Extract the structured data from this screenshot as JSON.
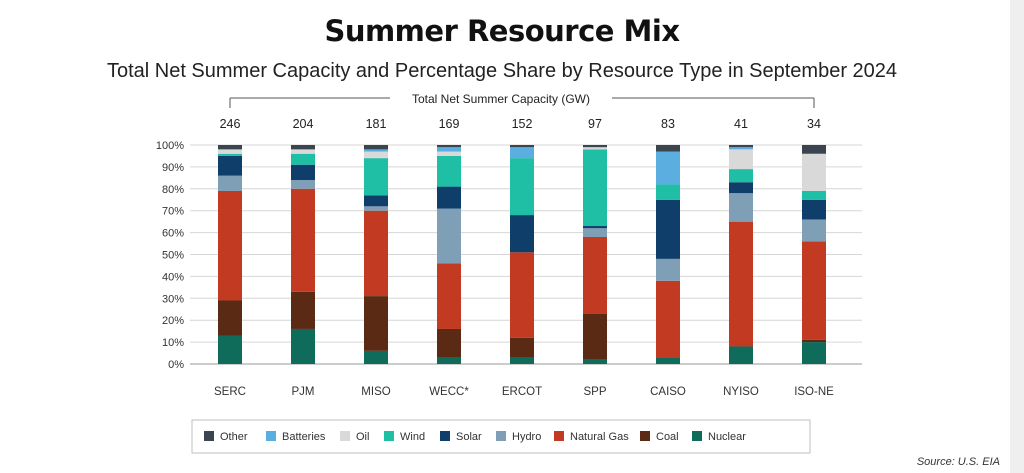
{
  "title": "Summer Resource Mix",
  "subtitle": "Total Net Summer Capacity and Percentage Share by Resource Type in September 2024",
  "source": "Source: U.S. EIA",
  "colors": {
    "Nuclear": "#0f6b5a",
    "Coal": "#5a2a14",
    "Natural Gas": "#c23a22",
    "Hydro": "#7f9fb6",
    "Solar": "#0f3e6a",
    "Wind": "#1fbfa6",
    "Oil": "#d9d9d9",
    "Batteries": "#5aaee0",
    "Other": "#3b4550"
  },
  "chart_data": {
    "type": "bar",
    "stacked": true,
    "capacity_label": "Total Net Summer Capacity (GW)",
    "categories": [
      "SERC",
      "PJM",
      "MISO",
      "WECC*",
      "ERCOT",
      "SPP",
      "CAISO",
      "NYISO",
      "ISO-NE"
    ],
    "capacity_gw": [
      "246",
      "204",
      "181",
      "169",
      "152",
      "97",
      "83",
      "41",
      "34"
    ],
    "ylim": [
      0,
      100
    ],
    "yticks": [
      "0%",
      "10%",
      "20%",
      "30%",
      "40%",
      "50%",
      "60%",
      "70%",
      "80%",
      "90%",
      "100%"
    ],
    "grid": true,
    "legend_position": "bottom",
    "legend_order": [
      "Other",
      "Batteries",
      "Oil",
      "Wind",
      "Solar",
      "Hydro",
      "Natural Gas",
      "Coal",
      "Nuclear"
    ],
    "series": [
      {
        "name": "Nuclear",
        "values": [
          13,
          16,
          6,
          3,
          3,
          2,
          3,
          8,
          10
        ]
      },
      {
        "name": "Coal",
        "values": [
          16,
          17,
          25,
          13,
          9,
          21,
          0,
          0,
          1
        ]
      },
      {
        "name": "Natural Gas",
        "values": [
          50,
          47,
          39,
          30,
          39,
          35,
          35,
          57,
          45
        ]
      },
      {
        "name": "Hydro",
        "values": [
          7,
          4,
          2,
          25,
          0,
          4,
          10,
          13,
          10
        ]
      },
      {
        "name": "Solar",
        "values": [
          9,
          7,
          5,
          10,
          17,
          1,
          27,
          5,
          9
        ]
      },
      {
        "name": "Wind",
        "values": [
          1,
          5,
          17,
          14,
          26,
          35,
          7,
          6,
          4
        ]
      },
      {
        "name": "Oil",
        "values": [
          2,
          2,
          3,
          2,
          0,
          1,
          0,
          9,
          17
        ]
      },
      {
        "name": "Batteries",
        "values": [
          0,
          0,
          1,
          2,
          5,
          0,
          15,
          1,
          0
        ]
      },
      {
        "name": "Other",
        "values": [
          2,
          2,
          2,
          1,
          1,
          1,
          3,
          1,
          4
        ]
      }
    ]
  }
}
